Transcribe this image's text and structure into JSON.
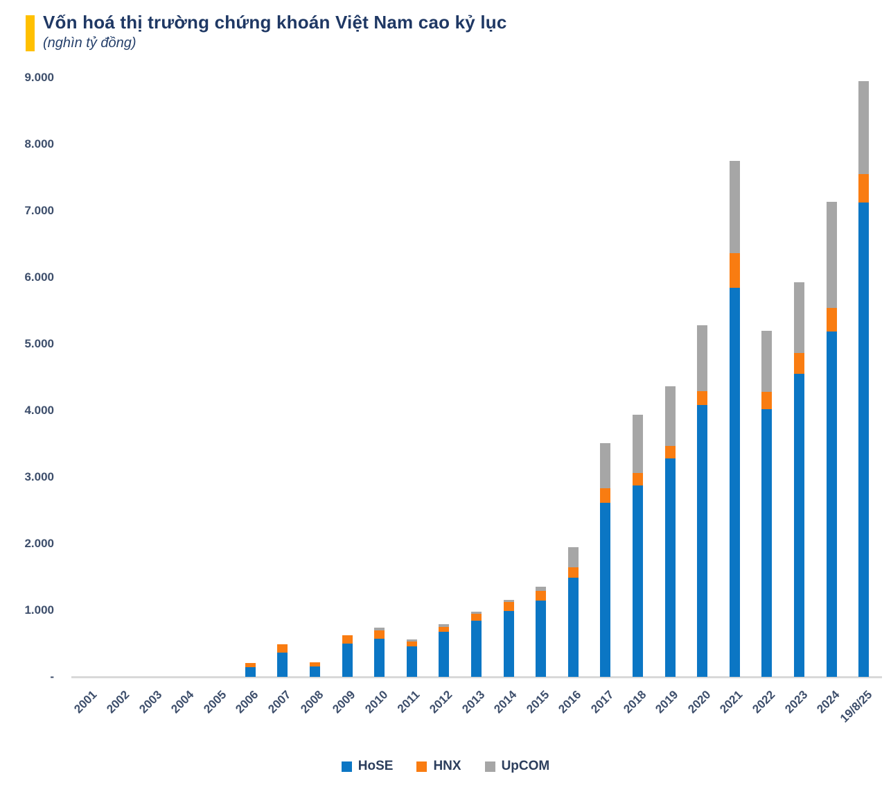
{
  "header": {
    "title": "Vốn hoá thị trường chứng khoán Việt Nam cao kỷ lục",
    "subtitle": "(nghìn tỷ đồng)",
    "accent_color": "#FFC000"
  },
  "chart_data": {
    "type": "bar",
    "stacked": true,
    "title": "Vốn hoá thị trường chứng khoán Việt Nam cao kỷ lục",
    "subtitle": "(nghìn tỷ đồng)",
    "xlabel": "",
    "ylabel": "",
    "ylim": [
      0,
      9000
    ],
    "ytick_interval": 1000,
    "ytick_labels_bottom_to_top": [
      "-",
      "1.000",
      "2.000",
      "3.000",
      "4.000",
      "5.000",
      "6.000",
      "7.000",
      "8.000",
      "9.000"
    ],
    "grid": false,
    "legend_position": "bottom",
    "categories": [
      "2001",
      "2002",
      "2003",
      "2004",
      "2005",
      "2006",
      "2007",
      "2008",
      "2009",
      "2010",
      "2011",
      "2012",
      "2013",
      "2014",
      "2015",
      "2016",
      "2017",
      "2018",
      "2019",
      "2020",
      "2021",
      "2022",
      "2023",
      "2024",
      "19/8/25"
    ],
    "series": [
      {
        "name": "HoSE",
        "color": "#0B76C4",
        "values": [
          0,
          0,
          0,
          0,
          0,
          148,
          365,
          160,
          495,
          571,
          454,
          678,
          842,
          985,
          1146,
          1491,
          2614,
          2875,
          3280,
          4080,
          5840,
          4018,
          4556,
          5190,
          7120
        ]
      },
      {
        "name": "HNX",
        "color": "#F97C11",
        "values": [
          0,
          0,
          0,
          0,
          0,
          62,
          125,
          60,
          125,
          128,
          76,
          73,
          107,
          137,
          151,
          151,
          222,
          185,
          190,
          210,
          520,
          260,
          310,
          350,
          430
        ]
      },
      {
        "name": "UpCOM",
        "color": "#A6A6A6",
        "values": [
          0,
          0,
          0,
          0,
          0,
          0,
          0,
          0,
          0,
          44,
          28,
          42,
          30,
          38,
          60,
          302,
          674,
          875,
          900,
          990,
          1390,
          920,
          1060,
          1600,
          1400
        ]
      }
    ]
  },
  "colors": {
    "hose": "#0B76C4",
    "hnx": "#F97C11",
    "upcom": "#A6A6A6",
    "axis_text": "#3D4E6B",
    "title_text": "#1F3864",
    "baseline": "#D9D9D9",
    "accent": "#FFC000"
  }
}
